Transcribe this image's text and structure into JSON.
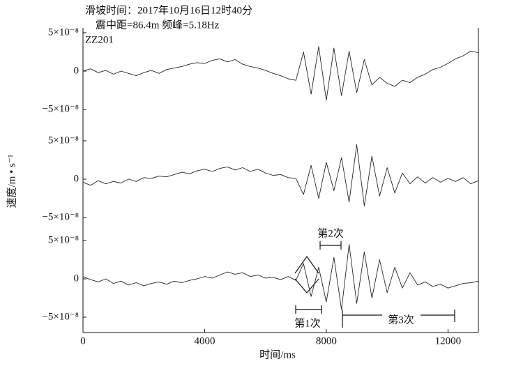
{
  "title_line1": "滑坡时间：2017年10月16日12时40分",
  "title_line2": "震中距=86.4m 频峰=5.18Hz",
  "ylabel": "速度/m • s⁻¹",
  "xlabel": "时间/ms",
  "xlim": [
    0,
    13000
  ],
  "xticks": [
    0,
    4000,
    8000,
    12000
  ],
  "annotations": [
    "第1次",
    "第2次",
    "第3次"
  ],
  "chart_data": [
    {
      "type": "line",
      "name": "ZZ201",
      "ylim": [
        -7e-08,
        7e-08
      ],
      "yticks": [
        {
          "value": -5e-08,
          "label": "−5×10⁻⁸"
        },
        0,
        {
          "value": 5e-08,
          "label": "5×10⁻⁸"
        }
      ],
      "x": [
        0,
        250,
        500,
        750,
        1000,
        1250,
        1500,
        1750,
        2000,
        2250,
        2500,
        2750,
        3000,
        3250,
        3500,
        3750,
        4000,
        4250,
        4500,
        4750,
        5000,
        5250,
        5500,
        5750,
        6000,
        6250,
        6500,
        6750,
        7000,
        7250,
        7500,
        7750,
        8000,
        8250,
        8500,
        8750,
        9000,
        9250,
        9500,
        9750,
        10000,
        10250,
        10500,
        10750,
        11000,
        11250,
        11500,
        11750,
        12000,
        12250,
        12500,
        12750,
        13000
      ],
      "values": [
        0,
        3e-09,
        -2e-09,
        1e-09,
        -4e-09,
        0,
        -3e-09,
        -6e-09,
        -2e-09,
        1e-09,
        -3e-09,
        2e-09,
        4e-09,
        6e-09,
        9e-09,
        1.1e-08,
        1e-08,
        1.4e-08,
        1.6e-08,
        1.2e-08,
        1.5e-08,
        9e-09,
        6e-09,
        4e-09,
        1e-09,
        -3e-09,
        -6e-09,
        -1e-08,
        -1.2e-08,
        2.5e-08,
        -3e-08,
        3.2e-08,
        -3.8e-08,
        3e-08,
        -3.2e-08,
        2.6e-08,
        -2.8e-08,
        1.5e-08,
        -1.8e-08,
        -8e-09,
        -1.6e-08,
        -2e-08,
        -1.2e-08,
        -1.5e-08,
        -8e-09,
        -4e-09,
        2e-09,
        5e-09,
        1e-08,
        1.6e-08,
        2e-08,
        2.6e-08,
        2.4e-08
      ],
      "color": "#222222"
    },
    {
      "type": "line",
      "ylim": [
        -7e-08,
        7e-08
      ],
      "yticks": [
        {
          "value": -5e-08,
          "label": "−5×10⁻⁸"
        },
        0,
        {
          "value": 5e-08,
          "label": "5×10⁻⁸"
        }
      ],
      "x": [
        0,
        250,
        500,
        750,
        1000,
        1250,
        1500,
        1750,
        2000,
        2250,
        2500,
        2750,
        3000,
        3250,
        3500,
        3750,
        4000,
        4250,
        4500,
        4750,
        5000,
        5250,
        5500,
        5750,
        6000,
        6250,
        6500,
        6750,
        7000,
        7250,
        7500,
        7750,
        8000,
        8250,
        8500,
        8750,
        9000,
        9250,
        9500,
        9750,
        10000,
        10250,
        10500,
        10750,
        11000,
        11250,
        11500,
        11750,
        12000,
        12250,
        12500,
        12750,
        13000
      ],
      "values": [
        -4e-09,
        -8e-09,
        -2e-09,
        -6e-09,
        -3e-09,
        -5e-09,
        0,
        -3e-09,
        2e-09,
        1e-09,
        4e-09,
        3e-09,
        6e-09,
        9e-09,
        7e-09,
        1.1e-08,
        1.3e-08,
        1e-08,
        1.4e-08,
        1.6e-08,
        1.2e-08,
        1.5e-08,
        1e-08,
        1.3e-08,
        8e-09,
        5e-09,
        6e-09,
        2e-09,
        1e-09,
        -2e-08,
        1.8e-08,
        -2.5e-08,
        2.2e-08,
        -1.5e-08,
        2.8e-08,
        -3e-08,
        4.5e-08,
        -3.5e-08,
        3e-08,
        -2.2e-08,
        1.5e-08,
        -1.8e-08,
        8e-09,
        -6e-09,
        3e-09,
        -5e-09,
        2e-09,
        -4e-09,
        1e-09,
        -3e-09,
        2e-09,
        -6e-09,
        -2e-09
      ],
      "color": "#222222"
    },
    {
      "type": "line",
      "ylim": [
        -7e-08,
        7e-08
      ],
      "yticks": [
        {
          "value": -5e-08,
          "label": "−5×10⁻⁸"
        },
        0,
        {
          "value": 5e-08,
          "label": "5×10⁻⁸"
        }
      ],
      "x": [
        0,
        250,
        500,
        750,
        1000,
        1250,
        1500,
        1750,
        2000,
        2250,
        2500,
        2750,
        3000,
        3250,
        3500,
        3750,
        4000,
        4250,
        4500,
        4750,
        5000,
        5250,
        5500,
        5750,
        6000,
        6250,
        6500,
        6750,
        7000,
        7250,
        7500,
        7750,
        8000,
        8250,
        8500,
        8750,
        9000,
        9250,
        9500,
        9750,
        10000,
        10250,
        10500,
        10750,
        11000,
        11250,
        11500,
        11750,
        12000,
        12250,
        12500,
        12750,
        13000
      ],
      "values": [
        3e-09,
        -1e-09,
        -4e-09,
        0,
        -6e-09,
        -3e-09,
        -8e-09,
        -5e-09,
        -9e-09,
        -6e-09,
        -4e-09,
        -7e-09,
        -3e-09,
        -5e-09,
        -2e-09,
        0,
        3e-09,
        1e-09,
        5e-09,
        9e-09,
        6e-09,
        8e-09,
        3e-09,
        5e-09,
        1e-09,
        2e-09,
        -1e-09,
        3e-09,
        -2e-09,
        2e-08,
        -2.3e-08,
        1.5e-08,
        -3e-08,
        2.8e-08,
        -4e-08,
        4.5e-08,
        -3.2e-08,
        3.5e-08,
        -2.5e-08,
        2.5e-08,
        -1.8e-08,
        1.5e-08,
        -1.2e-08,
        8e-09,
        -8e-09,
        -4e-09,
        -1e-08,
        -7e-09,
        -1.2e-08,
        -9e-09,
        -6e-09,
        -5e-09,
        -3e-09
      ],
      "color": "#222222"
    }
  ]
}
